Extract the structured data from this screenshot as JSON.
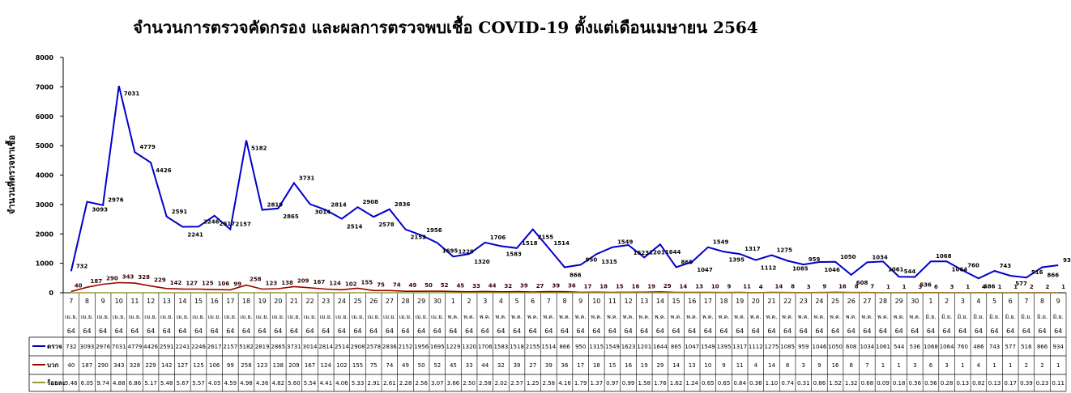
{
  "chart_data": {
    "type": "line",
    "title": "จำนวนการตรวจคัดกรอง และผลการตรวจพบเชื้อ COVID-19 ตั้งแต่เดือนเมษายน 2564",
    "ylabel": "จำนวนที่ตรวจหาเชื้อ",
    "ylim": [
      0,
      8000
    ],
    "yticks": [
      0,
      1000,
      2000,
      3000,
      4000,
      5000,
      6000,
      7000,
      8000
    ],
    "grid": false,
    "legend_position": "table-left",
    "x_day": [
      "7",
      "8",
      "9",
      "10",
      "11",
      "12",
      "13",
      "14",
      "15",
      "16",
      "17",
      "18",
      "19",
      "20",
      "21",
      "22",
      "23",
      "24",
      "25",
      "26",
      "27",
      "28",
      "29",
      "30",
      "1",
      "2",
      "3",
      "4",
      "5",
      "6",
      "7",
      "8",
      "9",
      "10",
      "11",
      "12",
      "13",
      "14",
      "15",
      "16",
      "17",
      "18",
      "19",
      "20",
      "21",
      "22",
      "23",
      "24",
      "25",
      "26",
      "27",
      "28",
      "29",
      "30",
      "1",
      "2",
      "3",
      "4",
      "5",
      "6",
      "7",
      "8",
      "9"
    ],
    "x_month": [
      "เม.ย.",
      "เม.ย.",
      "เม.ย.",
      "เม.ย.",
      "เม.ย.",
      "เม.ย.",
      "เม.ย.",
      "เม.ย.",
      "เม.ย.",
      "เม.ย.",
      "เม.ย.",
      "เม.ย.",
      "เม.ย.",
      "เม.ย.",
      "เม.ย.",
      "เม.ย.",
      "เม.ย.",
      "เม.ย.",
      "เม.ย.",
      "เม.ย.",
      "เม.ย.",
      "เม.ย.",
      "เม.ย.",
      "เม.ย.",
      "พ.ค.",
      "พ.ค.",
      "พ.ค.",
      "พ.ค.",
      "พ.ค.",
      "พ.ค.",
      "พ.ค.",
      "พ.ค.",
      "พ.ค.",
      "พ.ค.",
      "พ.ค.",
      "พ.ค.",
      "พ.ค.",
      "พ.ค.",
      "พ.ค.",
      "พ.ค.",
      "พ.ค.",
      "พ.ค.",
      "พ.ค.",
      "พ.ค.",
      "พ.ค.",
      "พ.ค.",
      "พ.ค.",
      "พ.ค.",
      "พ.ค.",
      "พ.ค.",
      "พ.ค.",
      "พ.ค.",
      "พ.ค.",
      "พ.ค.",
      "มิ.ย.",
      "มิ.ย.",
      "มิ.ย.",
      "มิ.ย.",
      "มิ.ย.",
      "มิ.ย.",
      "มิ.ย.",
      "มิ.ย.",
      "มิ.ย."
    ],
    "x_year": "64",
    "series": [
      {
        "name": "ตรวจ",
        "color": "#0000cc",
        "values": [
          732,
          3093,
          2976,
          7031,
          4779,
          4426,
          2591,
          2241,
          2246,
          2617,
          2157,
          5182,
          2819,
          2865,
          3731,
          3014,
          2814,
          2514,
          2908,
          2578,
          2836,
          2152,
          1956,
          1695,
          1229,
          1320,
          1706,
          1583,
          1518,
          2155,
          1514,
          866,
          950,
          1315,
          1549,
          1623,
          1201,
          1644,
          865,
          1047,
          1549,
          1395,
          1317,
          1112,
          1275,
          1085,
          959,
          1046,
          1050,
          608,
          1034,
          1061,
          544,
          536,
          1068,
          1064,
          760,
          486,
          743,
          577,
          516,
          866,
          934
        ]
      },
      {
        "name": "บวก",
        "color": "#990000",
        "values": [
          40,
          187,
          290,
          343,
          328,
          229,
          142,
          127,
          125,
          106,
          99,
          258,
          123,
          138,
          209,
          167,
          124,
          102,
          155,
          75,
          74,
          49,
          50,
          52,
          45,
          33,
          44,
          32,
          39,
          27,
          39,
          36,
          17,
          18,
          15,
          16,
          19,
          29,
          14,
          13,
          10,
          9,
          11,
          4,
          14,
          8,
          3,
          9,
          16,
          8,
          7,
          1,
          1,
          3,
          6,
          3,
          1,
          4,
          1,
          1,
          2,
          2,
          1
        ]
      },
      {
        "name": "ร้อยละ",
        "color": "#999933",
        "values": [
          "5.46",
          "6.05",
          "9.74",
          "4.88",
          "6.86",
          "5.17",
          "5.48",
          "5.67",
          "5.57",
          "4.05",
          "4.59",
          "4.98",
          "4.36",
          "4.82",
          "5.60",
          "5.54",
          "4.41",
          "4.06",
          "5.33",
          "2.91",
          "2.61",
          "2.28",
          "2.56",
          "3.07",
          "3.66",
          "2.50",
          "2.58",
          "2.02",
          "2.57",
          "1.25",
          "2.58",
          "4.16",
          "1.79",
          "1.37",
          "0.97",
          "0.99",
          "1.58",
          "1.76",
          "1.62",
          "1.24",
          "0.65",
          "0.65",
          "0.84",
          "0.36",
          "1.10",
          "0.74",
          "0.31",
          "0.86",
          "1.52",
          "1.32",
          "0.68",
          "0.09",
          "0.18",
          "0.56",
          "0.56",
          "0.28",
          "0.13",
          "0.82",
          "0.13",
          "0.17",
          "0.39",
          "0.23",
          "0.11"
        ]
      }
    ]
  }
}
